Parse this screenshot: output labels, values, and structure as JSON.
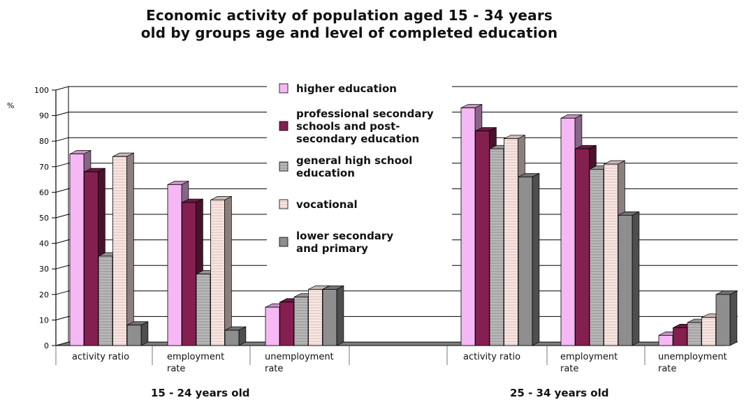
{
  "title_lines": [
    "Economic activity of population aged 15 - 34 years",
    "old by groups age and level of completed education"
  ],
  "colors": {
    "higher education": "#f6b8f4",
    "professional secondary schools and post-secondary education": "#84204f",
    "general high school education": "#b9b9b9",
    "vocational": "#fbe6e2",
    "lower secondary and primary": "#8e8e8e"
  },
  "chart_data": {
    "type": "bar",
    "ylabel": "%",
    "ylim": [
      0,
      100
    ],
    "yticks": [
      0,
      10,
      20,
      30,
      40,
      50,
      60,
      70,
      80,
      90,
      100
    ],
    "grid": true,
    "legend_position": "center",
    "categories": [
      [
        "activity ratio"
      ],
      [
        "employment",
        "rate"
      ],
      [
        "unemployment",
        "rate"
      ],
      [
        "activity ratio"
      ],
      [
        "employment",
        "rate"
      ],
      [
        "unemployment",
        "rate"
      ]
    ],
    "groups": [
      {
        "label": "15 - 24 years old",
        "categories": [
          0,
          1,
          2
        ]
      },
      {
        "label": "25 - 34 years old",
        "categories": [
          3,
          4,
          5
        ]
      }
    ],
    "series": [
      {
        "name": "higher education",
        "legend_lines": [
          "higher education"
        ],
        "values": [
          75,
          63,
          15,
          93,
          89,
          4
        ]
      },
      {
        "name": "professional secondary schools and post-secondary education",
        "legend_lines": [
          "professional secondary",
          "schools and post-",
          "secondary education"
        ],
        "values": [
          68,
          56,
          17,
          84,
          77,
          7
        ]
      },
      {
        "name": "general high school education",
        "legend_lines": [
          "general high school",
          "education"
        ],
        "values": [
          35,
          28,
          19,
          77,
          69,
          9
        ]
      },
      {
        "name": "vocational",
        "legend_lines": [
          "vocational"
        ],
        "values": [
          74,
          57,
          22,
          81,
          71,
          11
        ]
      },
      {
        "name": "lower secondary and primary",
        "legend_lines": [
          "lower secondary",
          "and primary"
        ],
        "values": [
          8,
          6,
          22,
          66,
          51,
          20
        ]
      }
    ]
  }
}
